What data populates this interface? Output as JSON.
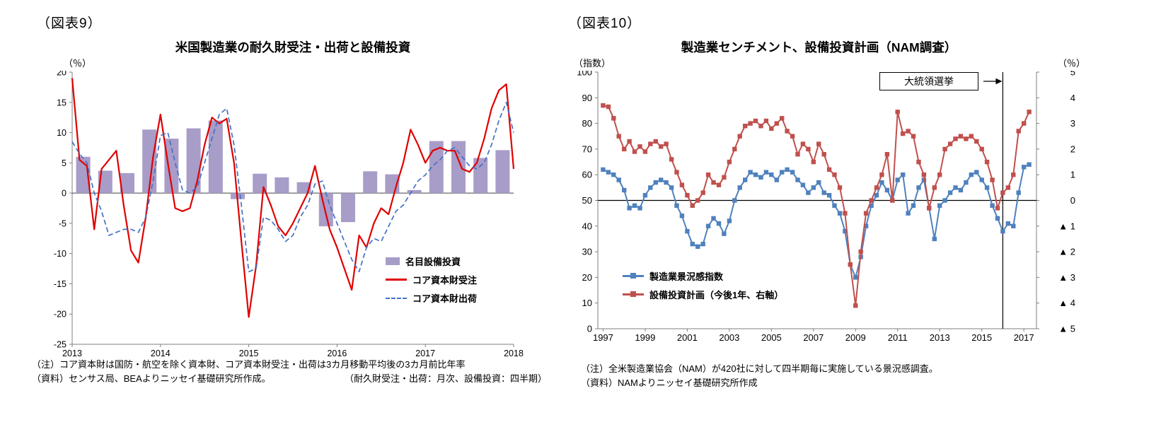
{
  "fig9": {
    "label": "（図表9）",
    "title": "米国製造業の耐久財受注・出荷と設備投資",
    "y_unit": "（％）",
    "legend": {
      "bar": "名目設備投資",
      "orders": "コア資本財受注",
      "shipments": "コア資本財出荷"
    },
    "notes": {
      "line1": "（注）コア資本財は国防・航空を除く資本財、コア資本財受注・出荷は3カ月移動平均後の3カ月前比年率",
      "line2_left": "（資料）センサス局、BEAよりニッセイ基礎研究所作成。",
      "line2_right": "（耐久財受注・出荷：月次、設備投資：四半期）"
    }
  },
  "fig10": {
    "label": "（図表10）",
    "title": "製造業センチメント、設備投資計画（NAM調査）",
    "y_unit_left": "（指数）",
    "y_unit_right": "（％）",
    "annotation": "大統領選挙",
    "legend": {
      "sentiment": "製造業景況感指数",
      "capex": "設備投資計画（今後1年、右軸）"
    },
    "notes": {
      "line1": "（注）全米製造業協会（NAM）が420社に対して四半期毎に実施している景況感調査。",
      "line2": "（資料）NAMよりニッセイ基礎研究所作成"
    }
  },
  "chart_data": [
    {
      "id": "fig9",
      "type": "bar+line",
      "title": "米国製造業の耐久財受注・出荷と設備投資",
      "ylabel": "（％）",
      "xlim": [
        2013,
        2018
      ],
      "ylim": [
        -25,
        20
      ],
      "xticks": [
        2013,
        2014,
        2015,
        2016,
        2017,
        2018
      ],
      "yticks": [
        20,
        15,
        10,
        5,
        0,
        -5,
        -10,
        -15,
        -20,
        -25
      ],
      "grid": false,
      "legend_position": "inside-right",
      "colors": {
        "bar": "#a89cc8",
        "orders": "#e00000",
        "shipments": "#4472c4"
      },
      "series": [
        {
          "name": "名目設備投資",
          "type": "bar",
          "axis": "left",
          "x_start": 2013.125,
          "x_step": 0.25,
          "values": [
            6,
            3.7,
            3.3,
            10.5,
            9,
            10.7,
            12,
            -1,
            3.2,
            2.6,
            1.8,
            -5.5,
            -4.8,
            3.6,
            3.1,
            0.5,
            8.6,
            8.6,
            5.8,
            7.1
          ]
        },
        {
          "name": "コア資本財受注",
          "type": "line",
          "style": "solid",
          "x_start": 2013.0,
          "x_step": 0.0833333,
          "values": [
            19,
            5.5,
            4.5,
            -6,
            4,
            5.5,
            7,
            -2,
            -9.5,
            -11.5,
            -4,
            6,
            13,
            5,
            -2.5,
            -3,
            -2.5,
            2,
            8,
            12.5,
            11.5,
            12.3,
            5,
            -8,
            -20.5,
            -12,
            1,
            -2,
            -5.5,
            -7,
            -5,
            -2.5,
            0,
            4.5,
            -1,
            -6,
            -9,
            -12.5,
            -16,
            -7,
            -9,
            -5,
            -2.5,
            -3.5,
            1,
            5,
            10.5,
            8,
            5,
            7,
            7.5,
            7,
            7,
            4,
            3.5,
            5,
            9,
            14,
            17,
            18,
            4
          ]
        },
        {
          "name": "コア資本財出荷",
          "type": "line",
          "style": "dashed",
          "x_start": 2013.0,
          "x_step": 0.0833333,
          "values": [
            8.5,
            6.5,
            5,
            0,
            -3,
            -7,
            -6.5,
            -6,
            -6,
            -6.5,
            -4,
            2,
            9.5,
            10,
            5,
            0.5,
            0,
            1,
            5,
            9,
            13,
            14,
            8,
            -2,
            -13,
            -12.5,
            -4,
            -4.5,
            -6,
            -8,
            -7,
            -4,
            -2,
            1.5,
            2,
            -2,
            -5,
            -8,
            -11,
            -13,
            -9,
            -7.5,
            -8,
            -5.5,
            -3,
            -2,
            0,
            2,
            3,
            4.5,
            5.5,
            7,
            7.5,
            6,
            4.5,
            4,
            5,
            8,
            12,
            15,
            10
          ]
        }
      ]
    },
    {
      "id": "fig10",
      "type": "line",
      "title": "製造業センチメント、設備投資計画（NAM調査）",
      "ylabel_left": "（指数）",
      "ylabel_right": "（％）",
      "xlim": [
        1996.75,
        2017.6
      ],
      "ylim_left": [
        0,
        100
      ],
      "ylim_right": [
        -5,
        5
      ],
      "xticks": [
        1997,
        1999,
        2001,
        2003,
        2005,
        2007,
        2009,
        2011,
        2013,
        2015,
        2017
      ],
      "yticks_left": [
        0,
        10,
        20,
        30,
        40,
        50,
        60,
        70,
        80,
        90,
        100
      ],
      "yticks_right_values": [
        5,
        4,
        3,
        2,
        1,
        0,
        -1,
        -2,
        -3,
        -4,
        -5
      ],
      "yticks_right_labels": [
        "5",
        "4",
        "3",
        "2",
        "1",
        "0",
        "▲ 1",
        "▲ 2",
        "▲ 3",
        "▲ 4",
        "▲ 5"
      ],
      "hline_left_value": 50,
      "vline_x": 2016,
      "vline_label": "大統領選挙",
      "grid": false,
      "legend_position": "inside-lower-left",
      "colors": {
        "sentiment": "#4f81bd",
        "capex": "#c0504d"
      },
      "series": [
        {
          "name": "製造業景況感指数",
          "axis": "left",
          "marker": "square",
          "x_start": 1997.0,
          "x_step": 0.25,
          "values": [
            62,
            61,
            60,
            58,
            54,
            47,
            48,
            47,
            52,
            55,
            57,
            58,
            57,
            55,
            48,
            44,
            38,
            33,
            32,
            33,
            40,
            43,
            41,
            37,
            42,
            50,
            55,
            58,
            61,
            60,
            59,
            61,
            60,
            58,
            61,
            62,
            61,
            58,
            56,
            53,
            55,
            57,
            53,
            52,
            48,
            45,
            38,
            25,
            20,
            28,
            40,
            48,
            52,
            57,
            54,
            50,
            58,
            60,
            45,
            48,
            55,
            58,
            47,
            35,
            48,
            50,
            53,
            55,
            54,
            57,
            60,
            61,
            58,
            55,
            48,
            43,
            38,
            41,
            40,
            53,
            63,
            64
          ]
        },
        {
          "name": "設備投資計画（今後1年、右軸）",
          "axis": "right",
          "marker": "square",
          "x_start": 1997.0,
          "x_step": 0.25,
          "values": [
            3.7,
            3.65,
            3.2,
            2.5,
            2.0,
            2.3,
            1.9,
            2.1,
            1.9,
            2.2,
            2.3,
            2.1,
            2.2,
            1.6,
            1.1,
            0.6,
            0.2,
            -0.2,
            0.0,
            0.3,
            1.0,
            0.7,
            0.6,
            0.9,
            1.5,
            2.0,
            2.5,
            2.9,
            3.0,
            3.1,
            2.9,
            3.1,
            2.8,
            3.0,
            3.2,
            2.7,
            2.5,
            1.8,
            2.2,
            2.0,
            1.5,
            2.2,
            1.8,
            1.2,
            1.0,
            0.5,
            -0.5,
            -2.5,
            -4.1,
            -2.0,
            -0.5,
            0.0,
            0.5,
            1.0,
            1.8,
            0.0,
            3.45,
            2.6,
            2.7,
            2.5,
            1.5,
            1.0,
            -0.3,
            0.5,
            1.0,
            2.0,
            2.2,
            2.4,
            2.5,
            2.4,
            2.5,
            2.3,
            2.0,
            1.5,
            0.8,
            -0.3,
            0.3,
            0.5,
            1.0,
            2.7,
            3.0,
            3.45
          ]
        }
      ]
    }
  ]
}
